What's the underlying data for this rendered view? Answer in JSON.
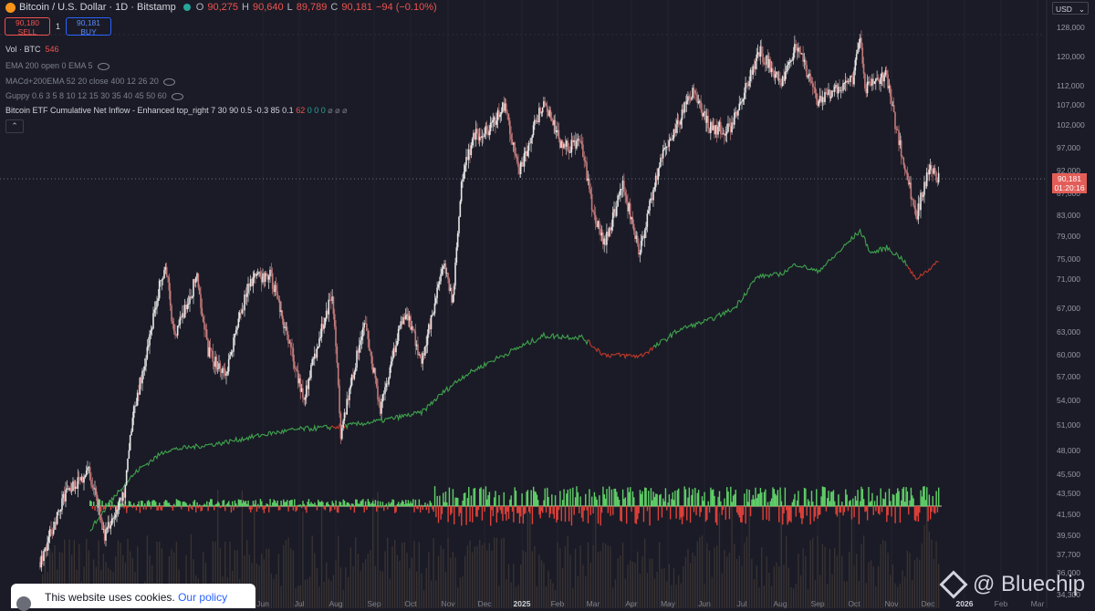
{
  "header": {
    "symbol_title": "Bitcoin / U.S. Dollar · 1D · Bitstamp",
    "open_key": "O",
    "open_val": "90,275",
    "high_key": "H",
    "high_val": "90,640",
    "low_key": "L",
    "low_val": "89,789",
    "close_key": "C",
    "close_val": "90,181",
    "change": "−94 (−0.10%)"
  },
  "trade": {
    "sell_price": "90,180",
    "sell_label": "SELL",
    "spread": "1",
    "buy_price": "90,181",
    "buy_label": "BUY"
  },
  "indicators": {
    "vol_name": "Vol · BTC",
    "vol_value": "546",
    "ema": "EMA 200 open 0 EMA 5",
    "macd": "MACd+200EMA 52 20 close 400 12 26 20",
    "guppy": "Guppy 0.6 3 5 8 10 12 15 30 35 40 45 50 60",
    "etf_name": "Bitcoin ETF Cumulative Net Inflow - Enhanced top_right 7 30 90 0.5 -0.3 85 0.1",
    "etf_red": "62",
    "etf_green": "0 0 0",
    "etf_tail": " ⌀ ⌀ ⌀"
  },
  "currency": "USD",
  "price_label": {
    "price": "90,181",
    "countdown": "01:20:16"
  },
  "cookie": {
    "text": "This website uses cookies.",
    "link": "Our policy"
  },
  "watermark": "@ Bluechip",
  "colors": {
    "up": "#26a69a",
    "down": "#ef5350",
    "flow_up": "#5fd068",
    "flow_down": "#e0413a",
    "cumulative": "#3fa34d",
    "cumulative_down": "#c0392b",
    "candle_up": "#e6e6e6",
    "candle_down": "#c47a7a"
  },
  "chart_data": {
    "type": "candlestick",
    "y_scale": "log",
    "y_ticks": [
      "128,000",
      "120,000",
      "112,000",
      "107,000",
      "102,000",
      "97,000",
      "92,000",
      "87,000",
      "83,000",
      "79,000",
      "75,000",
      "71,000",
      "67,000",
      "63,000",
      "60,000",
      "57,000",
      "54,000",
      "51,000",
      "48,000",
      "45,500",
      "43,500",
      "41,500",
      "39,500",
      "37,700",
      "36,000",
      "34,300"
    ],
    "x_ticks": [
      "Jun",
      "Jul",
      "Aug",
      "Sep",
      "Oct",
      "Nov",
      "Dec",
      "2025",
      "Feb",
      "Mar",
      "Apr",
      "May",
      "Jun",
      "Jul",
      "Aug",
      "Sep",
      "Oct",
      "Nov",
      "Dec",
      "2026",
      "Feb",
      "Mar"
    ],
    "last_price": 90181,
    "price_path": [
      [
        "2023-12-01",
        37000
      ],
      [
        "2023-12-20",
        43000
      ],
      [
        "2024-01-10",
        46000
      ],
      [
        "2024-01-23",
        39500
      ],
      [
        "2024-02-08",
        43500
      ],
      [
        "2024-02-15",
        52000
      ],
      [
        "2024-02-28",
        61000
      ],
      [
        "2024-03-05",
        68000
      ],
      [
        "2024-03-13",
        73500
      ],
      [
        "2024-03-20",
        62500
      ],
      [
        "2024-04-08",
        71500
      ],
      [
        "2024-04-17",
        60500
      ],
      [
        "2024-05-01",
        57000
      ],
      [
        "2024-05-21",
        71000
      ],
      [
        "2024-06-07",
        71800
      ],
      [
        "2024-06-25",
        60000
      ],
      [
        "2024-07-05",
        54000
      ],
      [
        "2024-07-29",
        69500
      ],
      [
        "2024-08-05",
        49500
      ],
      [
        "2024-08-24",
        64500
      ],
      [
        "2024-09-06",
        53000
      ],
      [
        "2024-09-27",
        66500
      ],
      [
        "2024-10-10",
        58800
      ],
      [
        "2024-10-29",
        73500
      ],
      [
        "2024-11-05",
        68000
      ],
      [
        "2024-11-13",
        91500
      ],
      [
        "2024-11-22",
        99500
      ],
      [
        "2024-12-05",
        100500
      ],
      [
        "2024-12-17",
        107000
      ],
      [
        "2024-12-30",
        92000
      ],
      [
        "2025-01-20",
        108000
      ],
      [
        "2025-02-05",
        97000
      ],
      [
        "2025-02-20",
        98000
      ],
      [
        "2025-02-28",
        84000
      ],
      [
        "2025-03-10",
        77500
      ],
      [
        "2025-03-25",
        88500
      ],
      [
        "2025-04-08",
        76000
      ],
      [
        "2025-04-25",
        94500
      ],
      [
        "2025-05-12",
        104000
      ],
      [
        "2025-05-22",
        111000
      ],
      [
        "2025-06-05",
        101500
      ],
      [
        "2025-06-22",
        101000
      ],
      [
        "2025-07-10",
        116500
      ],
      [
        "2025-07-14",
        122000
      ],
      [
        "2025-08-02",
        113000
      ],
      [
        "2025-08-14",
        123500
      ],
      [
        "2025-09-01",
        108000
      ],
      [
        "2025-09-30",
        114000
      ],
      [
        "2025-10-06",
        126000
      ],
      [
        "2025-10-10",
        111000
      ],
      [
        "2025-10-27",
        115000
      ],
      [
        "2025-11-05",
        101000
      ],
      [
        "2025-11-21",
        82500
      ],
      [
        "2025-12-03",
        93000
      ],
      [
        "2025-12-10",
        90181
      ]
    ],
    "cumulative_inflow_path": [
      [
        "2024-01-11",
        40000
      ],
      [
        "2024-02-05",
        44000
      ],
      [
        "2024-02-20",
        46000
      ],
      [
        "2024-03-13",
        48000
      ],
      [
        "2024-04-25",
        48800
      ],
      [
        "2024-06-07",
        50000
      ],
      [
        "2024-07-01",
        50500
      ],
      [
        "2024-08-05",
        50800
      ],
      [
        "2024-09-06",
        51500
      ],
      [
        "2024-10-10",
        52500
      ],
      [
        "2024-10-28",
        55000
      ],
      [
        "2024-11-13",
        57000
      ],
      [
        "2024-12-05",
        59000
      ],
      [
        "2024-12-30",
        61000
      ],
      [
        "2025-01-20",
        62500
      ],
      [
        "2025-02-20",
        62300
      ],
      [
        "2025-03-10",
        60000
      ],
      [
        "2025-04-08",
        59800
      ],
      [
        "2025-04-20",
        61000
      ],
      [
        "2025-05-12",
        63500
      ],
      [
        "2025-06-05",
        65000
      ],
      [
        "2025-06-25",
        67000
      ],
      [
        "2025-07-14",
        71500
      ],
      [
        "2025-08-02",
        72000
      ],
      [
        "2025-08-14",
        74000
      ],
      [
        "2025-09-01",
        72500
      ],
      [
        "2025-10-06",
        80000
      ],
      [
        "2025-10-15",
        76000
      ],
      [
        "2025-10-28",
        77000
      ],
      [
        "2025-11-10",
        75000
      ],
      [
        "2025-11-21",
        71000
      ],
      [
        "2025-12-10",
        74500
      ]
    ]
  }
}
